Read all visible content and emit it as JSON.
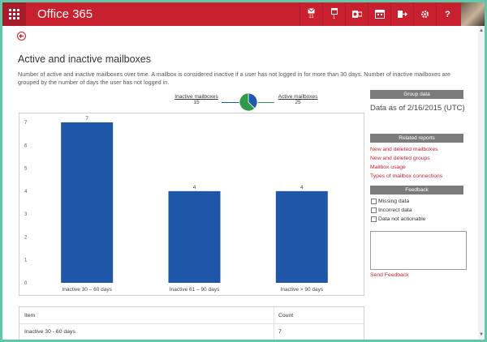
{
  "app": {
    "title": "Office 365",
    "mail_count": "11",
    "calendar_count": "1"
  },
  "page": {
    "title": "Active and inactive mailboxes",
    "description": "Number of active and inactive mailboxes over time. A mailbox is considered inactive if a user has not logged in for more than 30 days. Number of inactive mailboxes are grouped by the number of days the user has not logged in."
  },
  "summary": {
    "inactive_label": "Inactive mailboxes",
    "inactive_value": "15",
    "active_label": "Active mailboxes",
    "active_value": "25"
  },
  "chart_data": {
    "type": "bar",
    "categories": [
      "Inactive 30 – 60 days",
      "Inactive 61 – 90 days",
      "Inactive > 90 days"
    ],
    "values": [
      7,
      4,
      4
    ],
    "ylim": [
      0,
      7
    ],
    "yticks": [
      "0",
      "1",
      "2",
      "3",
      "4",
      "5",
      "6",
      "7"
    ],
    "data_labels": [
      "7",
      "4",
      "4"
    ],
    "bar_color": "#1e56a8",
    "pie": {
      "values": [
        15,
        25
      ],
      "colors": [
        "#1e5aa8",
        "#2e9a4a"
      ]
    }
  },
  "table": {
    "headers": [
      "Item",
      "Count"
    ],
    "rows": [
      [
        "Inactive 30 - 60 days",
        "7"
      ]
    ]
  },
  "sidebar": {
    "group_data_title": "Group data",
    "as_of": "Data as of 2/16/2015 (UTC)",
    "related_title": "Related reports",
    "reports": [
      "New and deleted mailboxes",
      "New and deleted groups",
      "Mailbox usage",
      "Types of mailbox connections"
    ],
    "feedback_title": "Feedback",
    "feedback_options": [
      "Missing data",
      "Incorrect data",
      "Data not actionable"
    ],
    "send_label": "Send Feedback"
  },
  "colors": {
    "brand": "#c8202f",
    "accent": "#1e56a8"
  },
  "icons": [
    "waffle-icon",
    "mail-icon",
    "calendar-icon",
    "outlook-icon",
    "calendar-app-icon",
    "forward-icon",
    "gear-icon",
    "help-icon",
    "back-arrow-icon"
  ]
}
